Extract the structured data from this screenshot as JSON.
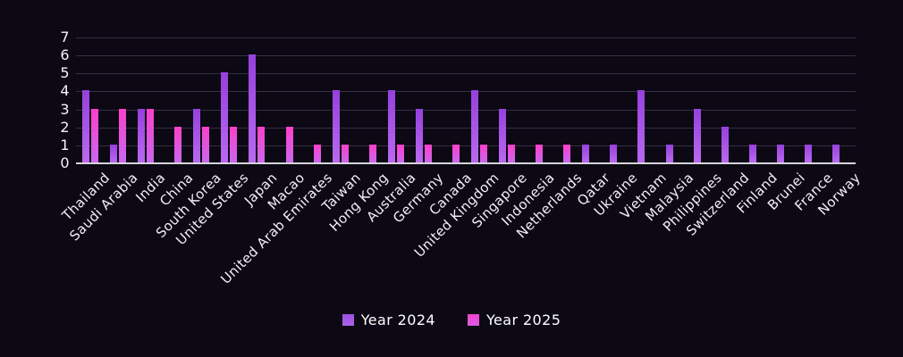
{
  "chart_data": {
    "type": "bar",
    "title": "",
    "categories": [
      "Thailand",
      "Saudi Arabia",
      "India",
      "China",
      "South Korea",
      "United States",
      "Japan",
      "Macao",
      "United Arab Emirates",
      "Taiwan",
      "Hong Kong",
      "Australia",
      "Germany",
      "Canada",
      "United Kingdom",
      "Singapore",
      "Indonesia",
      "Netherlands",
      "Qatar",
      "Ukraine",
      "Vietnam",
      "Malaysia",
      "Philippines",
      "Switzerland",
      "Finland",
      "Brunei",
      "France",
      "Norway"
    ],
    "series": [
      {
        "name": "Year 2024",
        "values": [
          4,
          1,
          3,
          0,
          3,
          5,
          6,
          0,
          0,
          4,
          0,
          4,
          3,
          0,
          4,
          3,
          0,
          0,
          1,
          1,
          4,
          1,
          3,
          2,
          1,
          1,
          1,
          1
        ],
        "color_top": "#9640dd",
        "color_bottom": "#b969f0"
      },
      {
        "name": "Year 2025",
        "values": [
          3,
          3,
          3,
          2,
          2,
          2,
          2,
          2,
          1,
          1,
          1,
          1,
          1,
          1,
          1,
          1,
          1,
          1,
          0,
          0,
          0,
          0,
          0,
          0,
          0,
          0,
          0,
          0
        ],
        "color_top": "#fb3fca",
        "color_bottom": "#cb67ef"
      }
    ],
    "xlabel": "",
    "ylabel": "",
    "ylim": [
      0,
      7
    ],
    "yticks": [
      0,
      1,
      2,
      3,
      4,
      5,
      6,
      7
    ],
    "grid": "horizontal",
    "gridline_color": "#353043",
    "axis_line_color": "#d6d4da",
    "background_color": "#0c0814",
    "text_color": "#f2f0f5",
    "legend_position": "bottom-center"
  }
}
